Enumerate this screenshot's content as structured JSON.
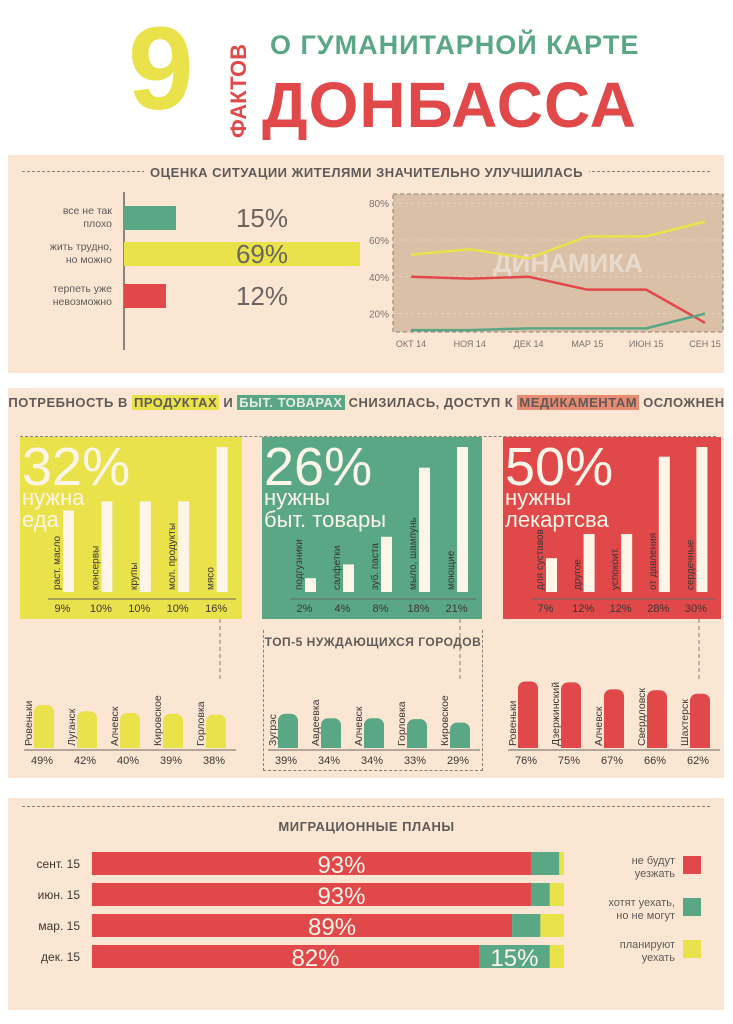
{
  "header": {
    "number": "9",
    "vertical": "ФАКТОВ",
    "subtitle": "О ГУМАНИТАРНОЙ КАРТЕ",
    "title": "ДОНБАССА"
  },
  "colors": {
    "red": "#e0484a",
    "green": "#5aa786",
    "yellow": "#e9e24a",
    "cream": "#fdf5e8",
    "panel": "#fbe6d4"
  },
  "section1": {
    "heading": "ОЦЕНКА СИТУАЦИИ ЖИТЕЛЯМИ ЗНАЧИТЕЛЬНО УЛУЧШИЛАСЬ"
  },
  "section2": {
    "h1": "ПОТРЕБНОСТЬ В",
    "h2": "ПРОДУКТАХ",
    "h3": "И",
    "h4": "БЫТ. ТОВАРАХ",
    "h5": "СНИЗИЛАСЬ, ДОСТУП К",
    "h6": "МЕДИКАМЕНТАМ",
    "h7": "ОСЛОЖНЕН",
    "cities_heading": "ТОП-5 НУЖДАЮЩИХСЯ ГОРОДОВ"
  },
  "section3": {
    "heading": "МИГРАЦИОННЫЕ ПЛАНЫ"
  },
  "chart_data": [
    {
      "type": "bar",
      "title": "ОЦЕНКА СИТУАЦИИ ЖИТЕЛЯМИ ЗНАЧИТЕЛЬНО УЛУЧШИЛАСЬ",
      "categories": [
        "все не так плохо",
        "жить трудно, но можно",
        "терпеть уже невозможно"
      ],
      "values": [
        15,
        69,
        12
      ],
      "labels": [
        "15%",
        "69%",
        "12%"
      ],
      "colors": [
        "#5aa786",
        "#e9e24a",
        "#e0484a"
      ]
    },
    {
      "type": "line",
      "title": "ДИНАМИКА",
      "x": [
        "ОКТ 14",
        "НОЯ 14",
        "ДЕК 14",
        "МАР 15",
        "ИЮН 15",
        "СЕН 15"
      ],
      "ylim": [
        10,
        85
      ],
      "yticks": [
        "80%",
        "60%",
        "40%",
        "20%"
      ],
      "ytick_values": [
        80,
        60,
        40,
        20
      ],
      "series": [
        {
          "values": [
            52,
            55,
            50,
            62,
            62,
            70
          ],
          "color": "#e9e24a"
        },
        {
          "values": [
            40,
            39,
            40,
            33,
            33,
            15
          ],
          "color": "#e0484a"
        },
        {
          "values": [
            11,
            11,
            12,
            12,
            12,
            20
          ],
          "color": "#5aa786"
        }
      ]
    },
    {
      "type": "bar",
      "big": "32%",
      "caption": [
        "нужна",
        "еда"
      ],
      "color": "#e9e24a",
      "categories": [
        "раст. масло",
        "консервы",
        "крупы",
        "мол. продукты",
        "мясо"
      ],
      "values": [
        9,
        10,
        10,
        10,
        16
      ],
      "labels": [
        "9%",
        "10%",
        "10%",
        "10%",
        "16%"
      ],
      "ylim": [
        0,
        16
      ]
    },
    {
      "type": "bar",
      "big": "26%",
      "caption": [
        "нужны",
        "быт. товары"
      ],
      "color": "#5aa786",
      "categories": [
        "подгузники",
        "салфетки",
        "зуб. паста",
        "мыло, шампунь",
        "моющие"
      ],
      "values": [
        2,
        4,
        8,
        18,
        21
      ],
      "labels": [
        "2%",
        "4%",
        "8%",
        "18%",
        "21%"
      ],
      "ylim": [
        0,
        21
      ]
    },
    {
      "type": "bar",
      "big": "50%",
      "caption": [
        "нужны",
        "лекартсва"
      ],
      "color": "#e0484a",
      "categories": [
        "для суставов",
        "другое",
        "успокоит.",
        "от давления",
        "сердечные"
      ],
      "values": [
        7,
        12,
        12,
        28,
        30
      ],
      "labels": [
        "7%",
        "12%",
        "12%",
        "28%",
        "30%"
      ],
      "ylim": [
        0,
        30
      ]
    },
    {
      "type": "bar",
      "title": "ТОП-5 НУЖДАЮЩИХСЯ ГОРОДОВ",
      "color": "#e9e24a",
      "categories": [
        "Ровеньки",
        "Луганск",
        "Алчевск",
        "Кировское",
        "Горловка"
      ],
      "values": [
        49,
        42,
        40,
        39,
        38
      ],
      "labels": [
        "49%",
        "42%",
        "40%",
        "39%",
        "38%"
      ],
      "ylim": [
        0,
        80
      ]
    },
    {
      "type": "bar",
      "color": "#5aa786",
      "categories": [
        "Зугрэс",
        "Авдеевка",
        "Алчевск",
        "Горловка",
        "Кировское"
      ],
      "values": [
        39,
        34,
        34,
        33,
        29
      ],
      "labels": [
        "39%",
        "34%",
        "34%",
        "33%",
        "29%"
      ],
      "ylim": [
        0,
        80
      ]
    },
    {
      "type": "bar",
      "color": "#e0484a",
      "categories": [
        "Ровеньки",
        "Дзержинский",
        "Алчевск",
        "Свердловск",
        "Шахтерск"
      ],
      "values": [
        76,
        75,
        67,
        66,
        62
      ],
      "labels": [
        "76%",
        "75%",
        "67%",
        "66%",
        "62%"
      ],
      "ylim": [
        0,
        80
      ]
    },
    {
      "type": "bar",
      "title": "МИГРАЦИОННЫЕ ПЛАНЫ",
      "stacked": true,
      "orientation": "horizontal",
      "categories": [
        "сент. 15",
        "июн. 15",
        "мар. 15",
        "дек. 15"
      ],
      "series": [
        {
          "name": "не будут уезжать",
          "color": "#e0484a",
          "values": [
            93,
            93,
            89,
            82
          ],
          "labels": [
            "93%",
            "93%",
            "89%",
            "82%"
          ]
        },
        {
          "name": "хотят уехать, но не могут",
          "color": "#5aa786",
          "values": [
            6,
            4,
            6,
            15
          ],
          "labels": [
            "",
            "",
            "",
            "15%"
          ]
        },
        {
          "name": "планируют уехать",
          "color": "#e9e24a",
          "values": [
            1,
            3,
            5,
            3
          ],
          "labels": [
            "",
            "",
            "",
            ""
          ]
        }
      ],
      "legend": [
        {
          "text": [
            "не будут",
            "уезжать"
          ],
          "color": "#e0484a"
        },
        {
          "text": [
            "хотят уехать,",
            "но не могут"
          ],
          "color": "#5aa786"
        },
        {
          "text": [
            "планируют",
            "уехать"
          ],
          "color": "#e9e24a"
        }
      ]
    }
  ]
}
